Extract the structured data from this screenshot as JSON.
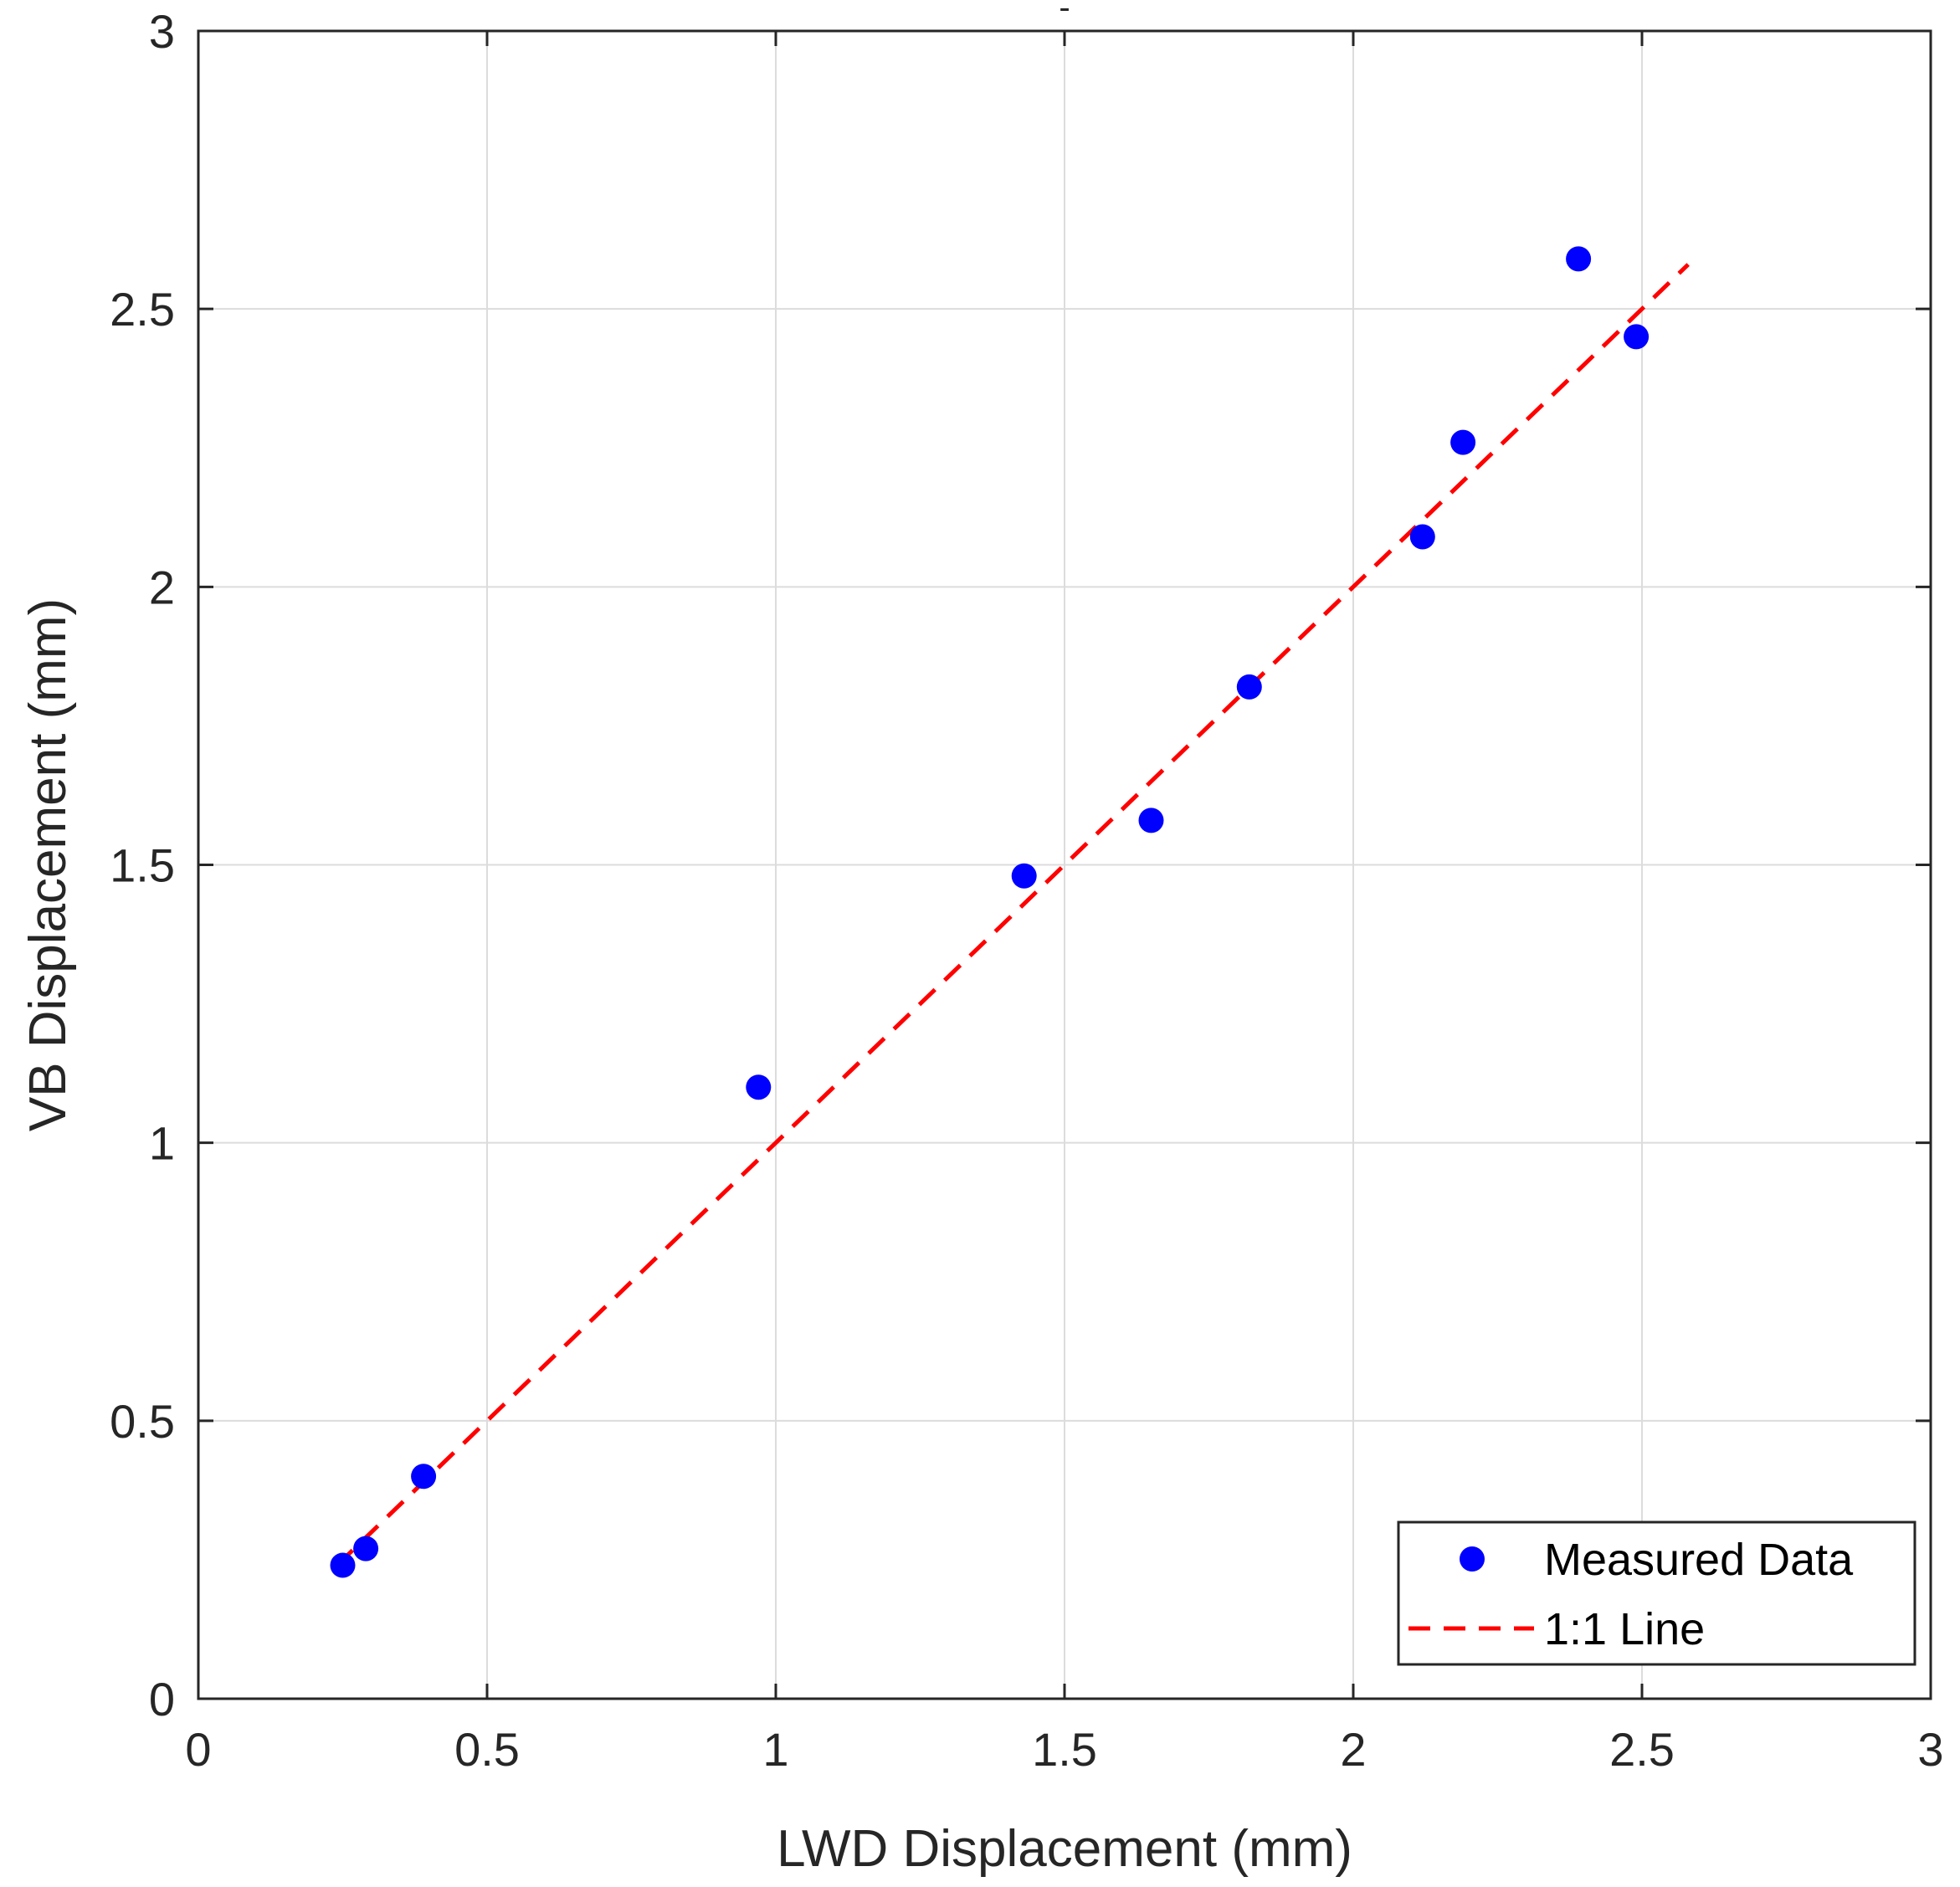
{
  "chart_data": {
    "type": "scatter",
    "title": "-",
    "xlabel": "LWD Displacement (mm)",
    "ylabel": "VB Displacement (mm)",
    "xlim": [
      0,
      3
    ],
    "ylim": [
      0,
      3
    ],
    "grid": true,
    "x_ticks": [
      "0",
      "0.5",
      "1",
      "1.5",
      "2",
      "2.5",
      "3"
    ],
    "y_ticks": [
      "0",
      "0.5",
      "1",
      "1.5",
      "2",
      "2.5",
      "3"
    ],
    "legend_position": "bottom-right",
    "series": [
      {
        "name": "Measured Data",
        "kind": "scatter",
        "color": "#0000ff",
        "x": [
          0.25,
          0.29,
          0.39,
          0.97,
          1.43,
          1.65,
          1.82,
          2.12,
          2.19,
          2.39,
          2.49
        ],
        "y": [
          0.24,
          0.27,
          0.4,
          1.1,
          1.48,
          1.58,
          1.82,
          2.09,
          2.26,
          2.59,
          2.45
        ]
      },
      {
        "name": "1:1 Line",
        "kind": "line",
        "style": "dashed",
        "color": "#ff0000",
        "x": [
          0.24,
          2.58
        ],
        "y": [
          0.24,
          2.58
        ]
      }
    ]
  }
}
